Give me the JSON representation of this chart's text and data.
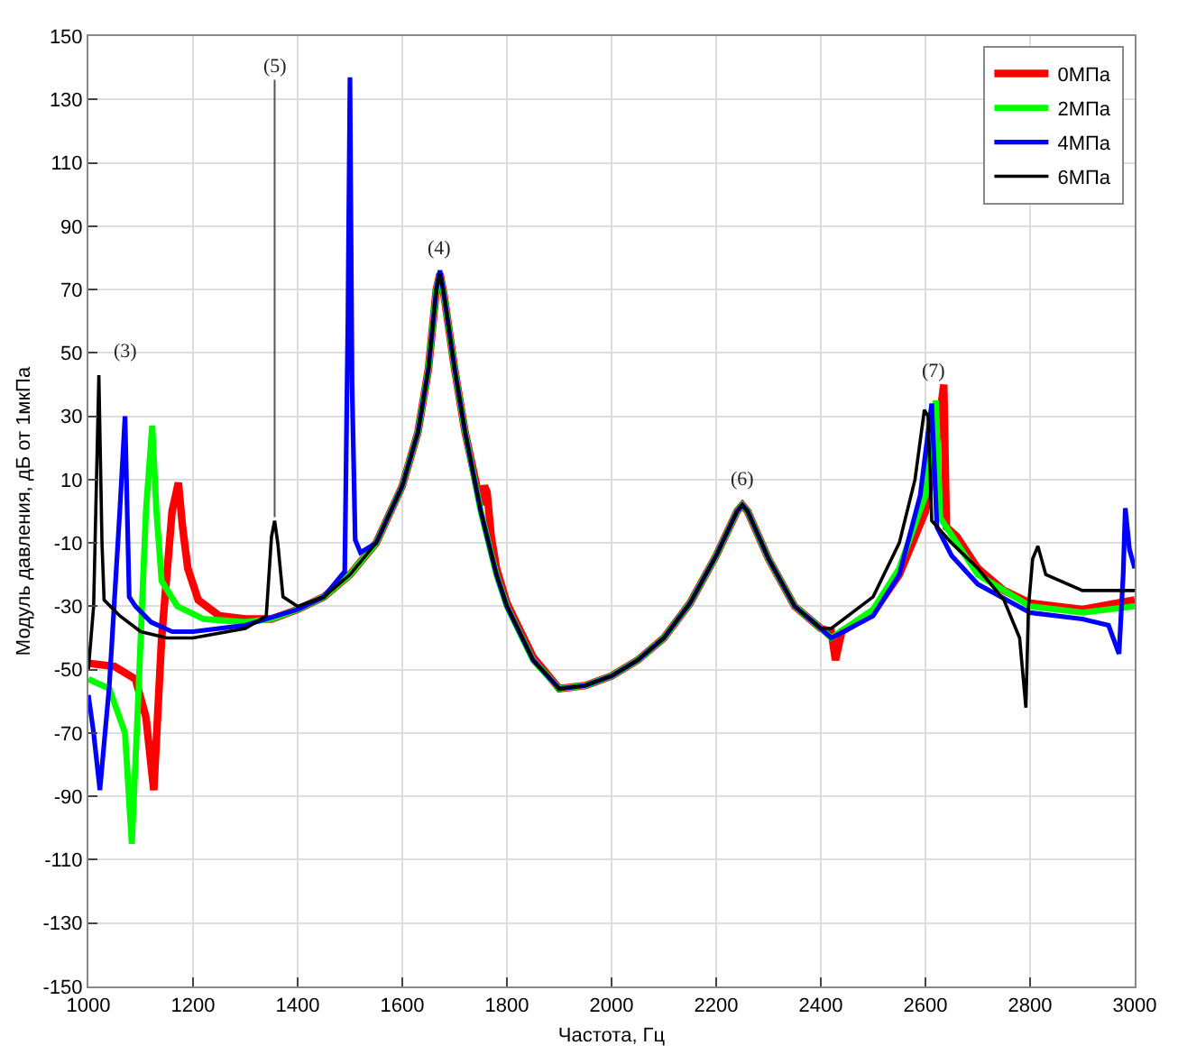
{
  "chart_data": {
    "type": "line",
    "xlabel": "Частота, Гц",
    "ylabel": "Модуль давления, дБ от 1мкПа",
    "xlim": [
      1000,
      3000
    ],
    "xticks": [
      1000,
      1200,
      1400,
      1600,
      1800,
      2000,
      2200,
      2400,
      2600,
      2800,
      3000
    ],
    "ylim": [
      -150,
      150
    ],
    "yticks": [
      -150,
      -130,
      -110,
      -90,
      -70,
      -50,
      -30,
      -10,
      10,
      30,
      50,
      70,
      90,
      110,
      130,
      150
    ],
    "grid": true,
    "legend": "top right",
    "marker": "none",
    "line_style": "solid",
    "annotations": [
      {
        "text": "(3)",
        "x": 1070,
        "y": 30
      },
      {
        "text": "(5)",
        "x": 1356,
        "y": -3
      },
      {
        "text": "(4)",
        "x": 1672,
        "y": 75
      },
      {
        "text": "(6)",
        "x": 2250,
        "y": 2
      },
      {
        "text": "(7)",
        "x": 2615,
        "y": 36
      }
    ],
    "series": [
      {
        "name": "0МПа",
        "color": "#ff0000",
        "x": [
          1000,
          1050,
          1090,
          1110,
          1125,
          1140,
          1160,
          1172,
          1180,
          1190,
          1210,
          1250,
          1300,
          1350,
          1400,
          1450,
          1500,
          1550,
          1600,
          1630,
          1650,
          1665,
          1672,
          1680,
          1700,
          1720,
          1750,
          1757,
          1762,
          1770,
          1780,
          1800,
          1850,
          1900,
          1950,
          2000,
          2050,
          2100,
          2150,
          2200,
          2240,
          2250,
          2260,
          2300,
          2350,
          2400,
          2420,
          2428,
          2440,
          2500,
          2550,
          2600,
          2620,
          2635,
          2640,
          2660,
          2700,
          2750,
          2800,
          2900,
          3000
        ],
        "values": [
          -48,
          -49,
          -53,
          -65,
          -88,
          -40,
          0,
          9,
          -5,
          -18,
          -28,
          -33,
          -34,
          -34,
          -31,
          -27,
          -20,
          -10,
          8,
          25,
          45,
          70,
          75,
          68,
          45,
          25,
          2,
          8,
          6,
          -8,
          -18,
          -29,
          -46,
          -56,
          -55,
          -52,
          -47,
          -40,
          -29,
          -14,
          0,
          2,
          0,
          -15,
          -30,
          -37,
          -38,
          -47,
          -38,
          -32,
          -20,
          0,
          20,
          40,
          -5,
          -8,
          -18,
          -25,
          -29,
          -31,
          -28
        ]
      },
      {
        "name": "2МПа",
        "color": "#00ff00",
        "x": [
          1000,
          1040,
          1070,
          1083,
          1095,
          1110,
          1122,
          1130,
          1140,
          1170,
          1220,
          1300,
          1350,
          1400,
          1450,
          1500,
          1550,
          1600,
          1630,
          1650,
          1665,
          1672,
          1680,
          1700,
          1720,
          1750,
          1780,
          1800,
          1850,
          1900,
          1950,
          2000,
          2050,
          2100,
          2150,
          2200,
          2240,
          2250,
          2260,
          2300,
          2350,
          2400,
          2420,
          2500,
          2550,
          2600,
          2620,
          2628,
          2640,
          2700,
          2800,
          2900,
          3000
        ],
        "values": [
          -53,
          -56,
          -70,
          -105,
          -60,
          0,
          27,
          0,
          -22,
          -30,
          -34,
          -35,
          -34,
          -31,
          -27,
          -20,
          -10,
          8,
          25,
          45,
          70,
          75,
          68,
          45,
          25,
          0,
          -20,
          -30,
          -47,
          -56,
          -55,
          -52,
          -47,
          -40,
          -29,
          -14,
          0,
          2,
          0,
          -15,
          -30,
          -37,
          -40,
          -31,
          -18,
          5,
          35,
          -2,
          -5,
          -20,
          -30,
          -32,
          -30
        ]
      },
      {
        "name": "4МПа",
        "color": "#0000ff",
        "x": [
          1000,
          1010,
          1022,
          1040,
          1060,
          1070,
          1078,
          1090,
          1120,
          1160,
          1200,
          1300,
          1400,
          1450,
          1490,
          1496,
          1500,
          1504,
          1510,
          1520,
          1550,
          1600,
          1630,
          1650,
          1665,
          1672,
          1680,
          1700,
          1720,
          1750,
          1780,
          1800,
          1850,
          1900,
          1950,
          2000,
          2050,
          2100,
          2150,
          2200,
          2240,
          2250,
          2260,
          2300,
          2350,
          2400,
          2420,
          2500,
          2550,
          2590,
          2612,
          2622,
          2650,
          2700,
          2800,
          2900,
          2950,
          2970,
          2978,
          2982,
          2990,
          3000
        ],
        "values": [
          -58,
          -70,
          -88,
          -55,
          0,
          30,
          -27,
          -30,
          -35,
          -38,
          -38,
          -36,
          -31,
          -27,
          -19,
          60,
          137,
          40,
          -9,
          -13,
          -10,
          8,
          25,
          45,
          70,
          76,
          68,
          45,
          25,
          0,
          -20,
          -30,
          -47,
          -56,
          -55,
          -52,
          -47,
          -40,
          -29,
          -14,
          0,
          2,
          0,
          -15,
          -30,
          -37,
          -40,
          -33,
          -20,
          5,
          34,
          -5,
          -14,
          -23,
          -32,
          -34,
          -36,
          -45,
          -20,
          1,
          -12,
          -18
        ]
      },
      {
        "name": "6МПа",
        "color": "#000000",
        "x": [
          1000,
          1010,
          1020,
          1026,
          1030,
          1060,
          1100,
          1150,
          1200,
          1300,
          1340,
          1350,
          1356,
          1362,
          1372,
          1400,
          1450,
          1500,
          1550,
          1600,
          1630,
          1650,
          1665,
          1672,
          1680,
          1700,
          1720,
          1750,
          1780,
          1800,
          1850,
          1900,
          1950,
          2000,
          2050,
          2100,
          2150,
          2200,
          2240,
          2250,
          2260,
          2300,
          2350,
          2400,
          2420,
          2500,
          2550,
          2580,
          2598,
          2605,
          2612,
          2650,
          2700,
          2750,
          2780,
          2792,
          2797,
          2805,
          2815,
          2830,
          2900,
          3000
        ],
        "values": [
          -50,
          -30,
          43,
          -10,
          -28,
          -33,
          -38,
          -40,
          -40,
          -37,
          -33,
          -8,
          -3,
          -10,
          -27,
          -30,
          -27,
          -20,
          -10,
          8,
          25,
          45,
          70,
          75,
          68,
          45,
          25,
          0,
          -20,
          -30,
          -47,
          -56,
          -55,
          -52,
          -47,
          -40,
          -29,
          -14,
          0,
          2,
          0,
          -15,
          -30,
          -37,
          -37,
          -27,
          -10,
          10,
          32,
          30,
          -3,
          -10,
          -18,
          -28,
          -40,
          -62,
          -30,
          -15,
          -11,
          -20,
          -25,
          -25
        ]
      }
    ]
  }
}
